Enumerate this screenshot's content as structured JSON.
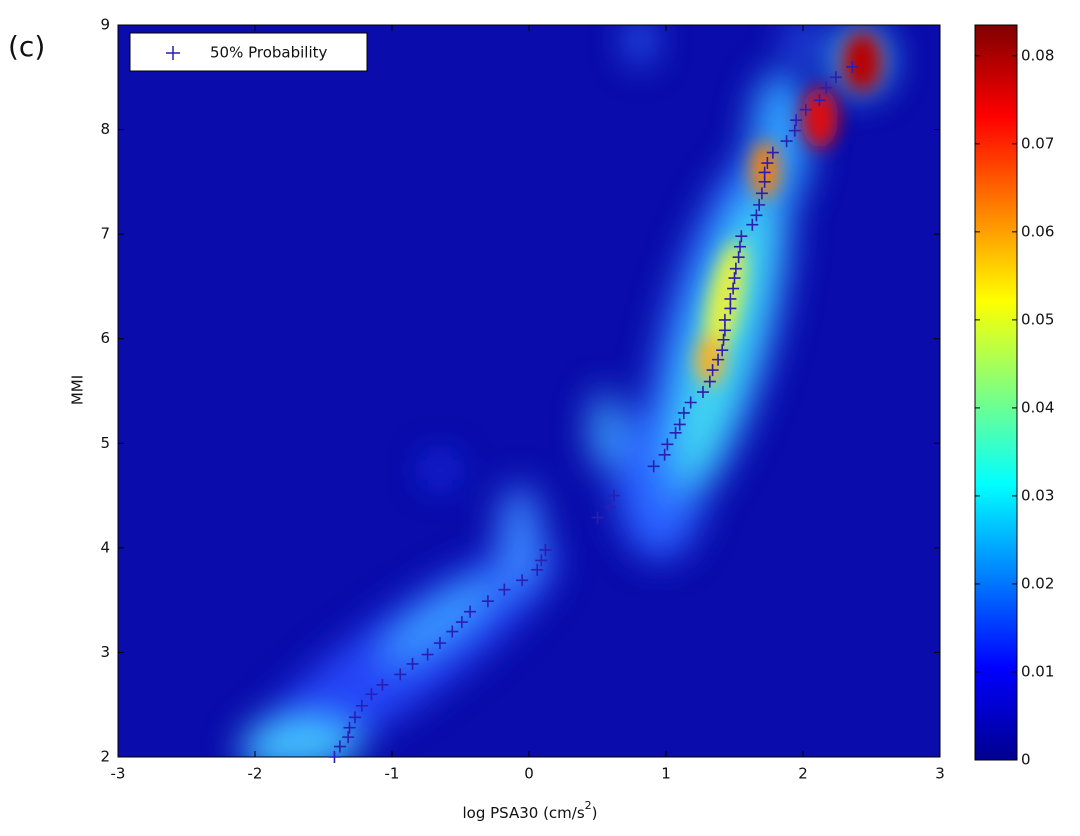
{
  "chart_data": {
    "type": "scatter",
    "panel_label": "(c)",
    "xlabel": [
      "log PSA30 (cm/s",
      "2",
      ")"
    ],
    "ylabel": "MMI",
    "xlim": [
      -3,
      3
    ],
    "xticks": [
      -3,
      -2,
      -1,
      0,
      1,
      2,
      3
    ],
    "ylim": [
      2,
      9
    ],
    "yticks": [
      2,
      3,
      4,
      5,
      6,
      7,
      8,
      9
    ],
    "legend_position": "upper left",
    "colorbar": {
      "colormap": "jet",
      "lim": [
        0,
        0.0835
      ],
      "ticks": [
        0,
        0.01,
        0.02,
        0.03,
        0.04,
        0.05,
        0.06,
        0.07,
        0.08
      ]
    },
    "series": [
      {
        "name": "50% Probability",
        "color": "#2a1fb0",
        "marker": "+",
        "x": [
          -1.42,
          -1.38,
          -1.32,
          -1.31,
          -1.27,
          -1.22,
          -1.15,
          -1.07,
          -0.94,
          -0.85,
          -0.74,
          -0.65,
          -0.56,
          -0.49,
          -0.43,
          -0.3,
          -0.18,
          -0.05,
          0.06,
          0.09,
          0.12,
          0.5,
          0.59,
          0.62,
          0.91,
          0.99,
          1.01,
          1.07,
          1.1,
          1.13,
          1.18,
          1.27,
          1.32,
          1.34,
          1.38,
          1.41,
          1.42,
          1.43,
          1.43,
          1.47,
          1.47,
          1.49,
          1.5,
          1.51,
          1.53,
          1.54,
          1.55,
          1.63,
          1.66,
          1.68,
          1.7,
          1.72,
          1.72,
          1.74,
          1.78,
          1.88,
          1.94,
          1.95,
          2.02,
          2.12,
          2.17,
          2.24,
          2.36
        ],
        "values": [
          2.0,
          2.1,
          2.19,
          2.28,
          2.38,
          2.49,
          2.6,
          2.69,
          2.79,
          2.89,
          2.98,
          3.09,
          3.2,
          3.29,
          3.39,
          3.49,
          3.6,
          3.69,
          3.79,
          3.88,
          3.98,
          4.29,
          4.39,
          4.5,
          4.78,
          4.89,
          4.99,
          5.1,
          5.18,
          5.29,
          5.39,
          5.49,
          5.59,
          5.7,
          5.8,
          5.89,
          5.99,
          6.08,
          6.18,
          6.29,
          6.38,
          6.48,
          6.58,
          6.67,
          6.78,
          6.88,
          6.98,
          7.09,
          7.18,
          7.28,
          7.39,
          7.5,
          7.59,
          7.68,
          7.78,
          7.89,
          7.99,
          8.09,
          8.19,
          8.28,
          8.4,
          8.5,
          8.6
        ]
      }
    ]
  }
}
